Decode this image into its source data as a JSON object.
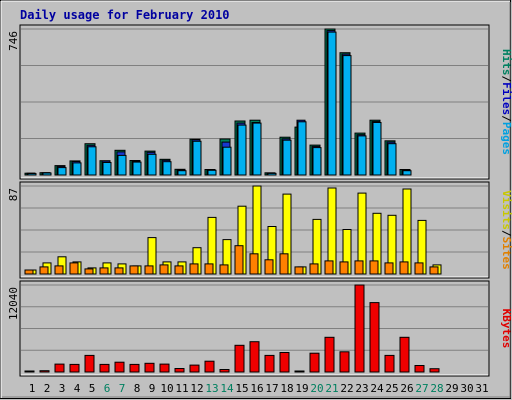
{
  "chart_data": {
    "type": "bar",
    "title": "Daily usage for February 2010",
    "categories": [
      "1",
      "2",
      "3",
      "4",
      "5",
      "6",
      "7",
      "8",
      "9",
      "10",
      "11",
      "12",
      "13",
      "14",
      "15",
      "16",
      "17",
      "18",
      "19",
      "20",
      "21",
      "22",
      "23",
      "24",
      "25",
      "26",
      "27",
      "28",
      "29",
      "30",
      "31"
    ],
    "weekend_days": [
      "6",
      "7",
      "13",
      "14",
      "20",
      "21",
      "27",
      "28"
    ],
    "panels": [
      {
        "id": "top",
        "ymax_label": "746",
        "ymax": 746,
        "grid": true,
        "right_label": [
          {
            "text": "Pages",
            "color": "#00a0e0"
          },
          {
            "text": " / ",
            "color": "#000000"
          },
          {
            "text": "Files",
            "color": "#0000c0"
          },
          {
            "text": " / ",
            "color": "#000000"
          },
          {
            "text": "Hits",
            "color": "#008060"
          }
        ],
        "series": [
          {
            "name": "Hits",
            "color": "#00805c",
            "values": [
              9,
              12,
              48,
              72,
              160,
              73,
              126,
              74,
              122,
              80,
              29,
              183,
              28,
              184,
              276,
              280,
              11,
              193,
              245,
              153,
              746,
              625,
              214,
              280,
              175,
              28,
              0,
              0,
              0,
              0,
              0
            ]
          },
          {
            "name": "Files",
            "color": "#1838d0",
            "values": [
              9,
              12,
              44,
              69,
              152,
              71,
              118,
              69,
              116,
              75,
              26,
              180,
              27,
              168,
              265,
              268,
              10,
              185,
              280,
              146,
              738,
              618,
              206,
              273,
              168,
              25,
              0,
              0,
              0,
              0,
              0
            ]
          },
          {
            "name": "Pages",
            "color": "#00b0f0",
            "values": [
              7,
              10,
              38,
              62,
              144,
              64,
              100,
              66,
              106,
              68,
              22,
              172,
              24,
              142,
              255,
              265,
              8,
              178,
              272,
              140,
              730,
              610,
              200,
              268,
              160,
              22,
              0,
              0,
              0,
              0,
              0
            ]
          }
        ]
      },
      {
        "id": "middle",
        "ymax_label": "87",
        "ymax": 87,
        "grid": true,
        "right_label": [
          {
            "text": "Sites",
            "color": "#e08000"
          },
          {
            "text": " / ",
            "color": "#000000"
          },
          {
            "text": "Visits",
            "color": "#c8c800"
          }
        ],
        "series": [
          {
            "name": "Visits",
            "color": "#ffff00",
            "values": [
              4,
              11,
              17,
              12,
              6,
              11,
              10,
              8,
              36,
              12,
              12,
              26,
              56,
              34,
              67,
              87,
              47,
              79,
              7,
              54,
              85,
              44,
              80,
              60,
              58,
              84,
              53,
              9,
              0,
              0,
              0
            ]
          },
          {
            "name": "Sites",
            "color": "#ff8000",
            "values": [
              4,
              7,
              8,
              11,
              5,
              6,
              6,
              8,
              8,
              9,
              8,
              10,
              10,
              9,
              28,
              20,
              14,
              20,
              7,
              10,
              13,
              12,
              13,
              13,
              11,
              12,
              11,
              7,
              0,
              0,
              0
            ]
          }
        ]
      },
      {
        "id": "bottom",
        "ymax_label": "12040",
        "ymax": 12040,
        "grid": true,
        "right_label": [
          {
            "text": "KBytes",
            "color": "#e00000"
          }
        ],
        "series": [
          {
            "name": "KBytes",
            "color": "#f00000",
            "values": [
              120,
              180,
              1100,
              1050,
              2300,
              1050,
              1350,
              1050,
              1200,
              1100,
              480,
              950,
              1500,
              350,
              3700,
              4200,
              2300,
              2700,
              100,
              2600,
              4800,
              2800,
              12040,
              9600,
              2300,
              4800,
              900,
              450,
              0,
              0,
              0
            ]
          }
        ]
      }
    ]
  }
}
